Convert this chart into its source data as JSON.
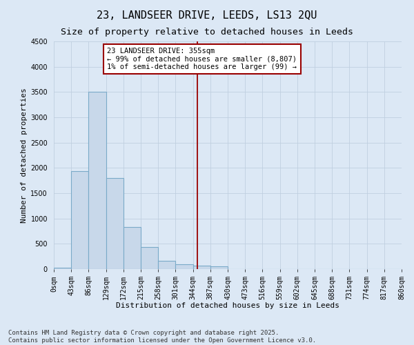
{
  "title": "23, LANDSEER DRIVE, LEEDS, LS13 2QU",
  "subtitle": "Size of property relative to detached houses in Leeds",
  "xlabel": "Distribution of detached houses by size in Leeds",
  "ylabel": "Number of detached properties",
  "annotation_title": "23 LANDSEER DRIVE: 355sqm",
  "annotation_line1": "← 99% of detached houses are smaller (8,807)",
  "annotation_line2": "1% of semi-detached houses are larger (99) →",
  "property_size": 355,
  "bin_edges": [
    0,
    43,
    86,
    129,
    172,
    215,
    258,
    301,
    344,
    387,
    430,
    473,
    516,
    559,
    602,
    645,
    688,
    731,
    774,
    817,
    860
  ],
  "bin_labels": [
    "0sqm",
    "43sqm",
    "86sqm",
    "129sqm",
    "172sqm",
    "215sqm",
    "258sqm",
    "301sqm",
    "344sqm",
    "387sqm",
    "430sqm",
    "473sqm",
    "516sqm",
    "559sqm",
    "602sqm",
    "645sqm",
    "688sqm",
    "731sqm",
    "774sqm",
    "817sqm",
    "860sqm"
  ],
  "bar_heights": [
    30,
    1940,
    3500,
    1800,
    830,
    430,
    170,
    90,
    70,
    60,
    0,
    0,
    0,
    0,
    0,
    0,
    0,
    0,
    0,
    0
  ],
  "bar_color": "#c8d8ea",
  "bar_edge_color": "#7aaac8",
  "vline_color": "#990000",
  "vline_x": 355,
  "annotation_box_color": "#990000",
  "background_color": "#dce8f5",
  "grid_color": "#c0cfe0",
  "ylim": [
    0,
    4500
  ],
  "yticks": [
    0,
    500,
    1000,
    1500,
    2000,
    2500,
    3000,
    3500,
    4000,
    4500
  ],
  "footer": "Contains HM Land Registry data © Crown copyright and database right 2025.\nContains public sector information licensed under the Open Government Licence v3.0.",
  "title_fontsize": 11,
  "subtitle_fontsize": 9.5,
  "axis_label_fontsize": 8,
  "tick_fontsize": 7,
  "annotation_fontsize": 7.5,
  "footer_fontsize": 6.5
}
